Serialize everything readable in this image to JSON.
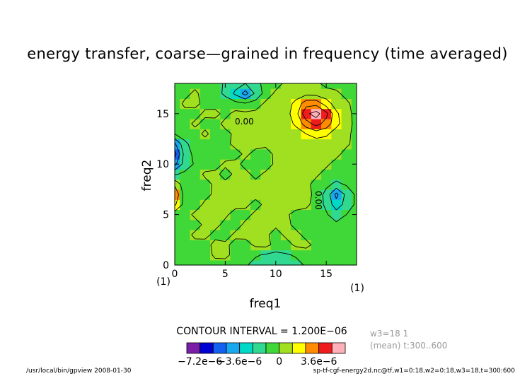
{
  "chart_data": {
    "type": "heatmap",
    "title": "energy transfer, coarse—grained in frequency (time averaged)",
    "xlabel": "freq1",
    "ylabel": "freq2",
    "x_unit_label": "(1)",
    "y_unit_label": "(1)",
    "xlim": [
      0,
      18
    ],
    "ylim": [
      0,
      18
    ],
    "x_ticks": [
      "0",
      "5",
      "10",
      "15"
    ],
    "y_ticks": [
      "0",
      "5",
      "10",
      "15"
    ],
    "contour_labels": [
      "0.00",
      "0.00"
    ],
    "contour_interval_label": "CONTOUR INTERVAL = 1.200E−06",
    "contour_interval": 1.2e-06,
    "colorbar": {
      "tick_labels": [
        "−7.2e−6",
        "−3.6e−6",
        "0",
        "3.6e−6"
      ],
      "levels": [
        -8.4e-06,
        -7.2e-06,
        -6e-06,
        -4.8e-06,
        -3.6e-06,
        -2.4e-06,
        -1.2e-06,
        0,
        1.2e-06,
        2.4e-06,
        3.6e-06,
        4.8e-06
      ],
      "colors": [
        "#7a1ea8",
        "#0000d0",
        "#1460f0",
        "#18a8f0",
        "#00d8c8",
        "#30d890",
        "#40d838",
        "#a0e020",
        "#ffff00",
        "#ff8c00",
        "#ee1c1c",
        "#ffb0b8"
      ]
    },
    "grid": [
      [
        -0.4,
        -0.5,
        -0.6,
        -0.5,
        -0.4,
        -0.5,
        -0.6,
        -0.9,
        -1.3,
        -1.8,
        -2.0,
        -1.7,
        -1.3,
        -0.9,
        -0.6,
        -0.5,
        -0.4,
        -0.5,
        -0.6
      ],
      [
        -0.3,
        -0.4,
        -0.5,
        -0.5,
        0.2,
        0.3,
        -0.4,
        -0.6,
        -0.9,
        -1.1,
        -1.3,
        -1.1,
        -0.9,
        -0.6,
        -0.4,
        -0.3,
        -0.4,
        -0.5,
        -0.5
      ],
      [
        -0.4,
        -0.2,
        -0.3,
        -0.4,
        0.3,
        0.2,
        -0.3,
        -0.4,
        0.2,
        0.3,
        -0.3,
        -0.4,
        0.2,
        0.3,
        -0.3,
        -0.4,
        -0.5,
        -0.6,
        -0.5
      ],
      [
        -0.5,
        -0.4,
        0.2,
        0.3,
        -0.3,
        -0.4,
        0.2,
        0.3,
        0.3,
        0.2,
        -0.4,
        0.2,
        0.3,
        -0.3,
        -0.4,
        -0.5,
        -0.4,
        -0.5,
        -0.6
      ],
      [
        -0.5,
        -0.6,
        -0.4,
        0.2,
        0.3,
        -0.3,
        -0.4,
        0.2,
        0.3,
        0.3,
        0.2,
        0.3,
        -0.3,
        -0.4,
        -0.5,
        -0.6,
        -0.8,
        -0.7,
        -0.6
      ],
      [
        -0.6,
        -0.4,
        0.2,
        0.3,
        0.3,
        0.2,
        -0.4,
        -0.3,
        0.2,
        0.3,
        0.3,
        0.2,
        -0.4,
        -0.5,
        -0.6,
        -0.9,
        -1.5,
        -1.0,
        -0.7
      ],
      [
        1.2,
        -0.4,
        -0.5,
        0.2,
        0.3,
        0.2,
        0.3,
        0.2,
        -0.3,
        0.2,
        0.3,
        0.4,
        0.5,
        0.3,
        -0.5,
        -1.2,
        -2.6,
        -1.6,
        -0.8
      ],
      [
        2.0,
        -0.5,
        -0.4,
        -0.3,
        0.2,
        0.3,
        0.3,
        0.2,
        0.3,
        0.2,
        0.4,
        0.6,
        0.9,
        0.5,
        -0.4,
        -1.3,
        -3.3,
        -1.7,
        -0.8
      ],
      [
        0.8,
        -0.6,
        -0.5,
        -0.4,
        0.2,
        0.3,
        0.2,
        0.3,
        0.3,
        0.2,
        0.3,
        0.5,
        0.4,
        0.3,
        -0.4,
        -0.8,
        -1.2,
        -0.9,
        -0.6
      ],
      [
        -1.1,
        -0.8,
        -0.6,
        0.2,
        0.3,
        -0.4,
        0.2,
        0.3,
        -0.3,
        0.2,
        0.3,
        0.3,
        0.2,
        0.3,
        0.2,
        -0.4,
        -0.6,
        -0.5,
        -0.4
      ],
      [
        -3.3,
        -1.5,
        -0.9,
        -0.6,
        -0.5,
        0.2,
        0.3,
        -0.3,
        -0.4,
        -0.5,
        0.2,
        0.3,
        0.2,
        0.3,
        0.3,
        0.2,
        -0.4,
        -0.4,
        -0.5
      ],
      [
        -4.4,
        -1.6,
        -0.7,
        -0.5,
        -0.6,
        -0.5,
        -0.4,
        0.2,
        -0.3,
        -0.4,
        0.2,
        0.3,
        0.3,
        0.2,
        0.3,
        0.2,
        0.3,
        -0.4,
        -0.5
      ],
      [
        -3.2,
        -1.2,
        -0.6,
        -0.4,
        -0.5,
        -0.3,
        0.3,
        0.2,
        0.3,
        0.2,
        0.3,
        0.2,
        0.3,
        0.4,
        0.5,
        0.4,
        0.3,
        0.2,
        -0.4
      ],
      [
        -1.0,
        -0.6,
        -0.4,
        0.2,
        -0.4,
        -0.3,
        0.2,
        0.3,
        0.2,
        0.3,
        0.3,
        0.4,
        0.5,
        1.0,
        1.4,
        1.2,
        0.5,
        0.3,
        -0.4
      ],
      [
        -0.5,
        -0.4,
        0.2,
        -0.3,
        -0.4,
        0.3,
        0.2,
        0.4,
        0.3,
        0.2,
        0.3,
        0.5,
        1.2,
        2.5,
        3.4,
        2.6,
        1.3,
        0.4,
        -0.3
      ],
      [
        -0.4,
        -0.3,
        -0.4,
        0.2,
        0.3,
        -0.3,
        0.3,
        0.2,
        0.3,
        0.3,
        0.4,
        0.6,
        1.6,
        3.8,
        4.4,
        3.3,
        1.2,
        0.3,
        -0.3
      ],
      [
        -0.5,
        0.2,
        0.3,
        -0.3,
        -0.4,
        -0.5,
        -0.7,
        -0.9,
        -0.6,
        0.2,
        0.3,
        0.5,
        1.3,
        2.6,
        2.7,
        1.5,
        0.5,
        0.2,
        -0.4
      ],
      [
        -0.4,
        -0.3,
        0.2,
        -0.4,
        -0.6,
        -1.2,
        -2.2,
        -3.4,
        -1.8,
        -0.6,
        0.2,
        0.3,
        0.5,
        0.7,
        0.6,
        0.4,
        0.2,
        -0.3,
        -0.4
      ],
      [
        -0.5,
        -0.4,
        -0.3,
        -0.5,
        -0.7,
        -1.1,
        -1.6,
        -2.0,
        -1.3,
        -0.7,
        -0.4,
        0.2,
        0.3,
        0.3,
        0.2,
        -0.3,
        -0.4,
        -0.5,
        -0.5
      ]
    ]
  },
  "side_info": {
    "line1": "w3=18  1",
    "line2": "(mean) t:300..600"
  },
  "footer": {
    "left": "/usr/local/bin/gpview  2008-01-30",
    "right": "sp-tf-cgf-energy2d.nc@tf,w1=0:18,w2=0:18,w3=18,t=300:600"
  }
}
